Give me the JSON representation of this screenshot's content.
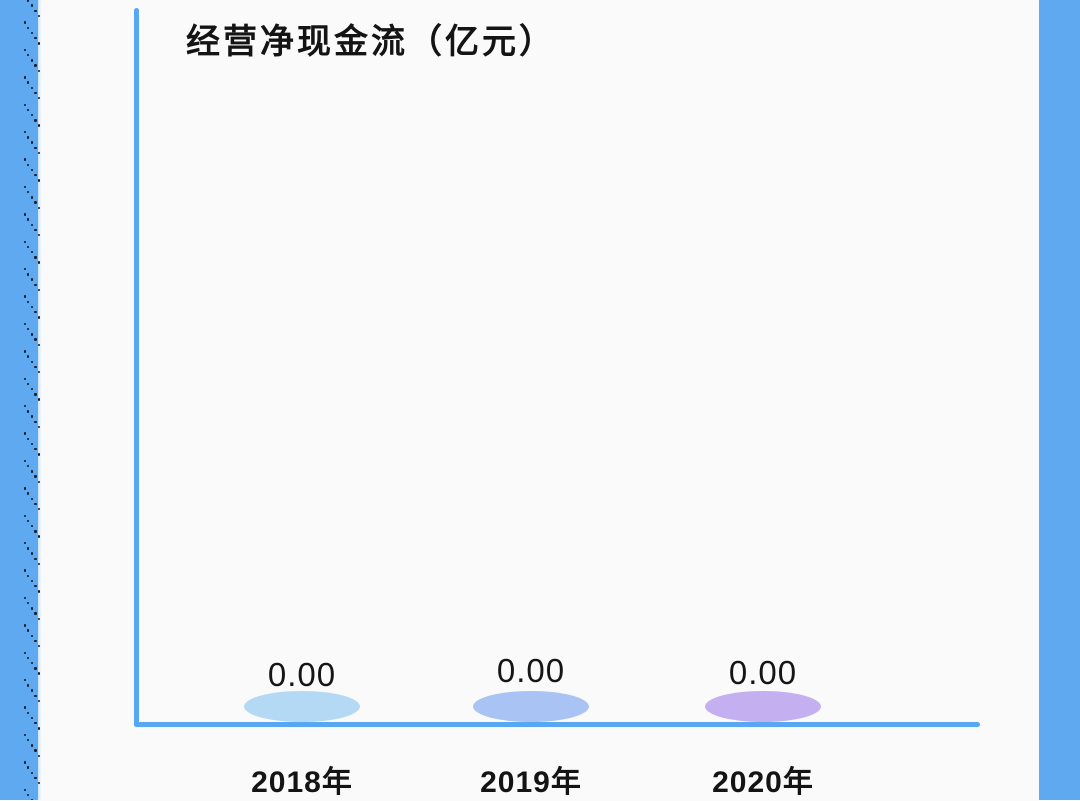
{
  "page": {
    "background_color": "#fafafa",
    "side_band_color": "#5fa9f0",
    "axis_color": "#57a7f3",
    "text_color": "#141414"
  },
  "chart_data": {
    "type": "bar",
    "marker": "ellipse",
    "title": "经营净现金流（亿元）",
    "xlabel": "",
    "ylabel": "",
    "categories": [
      "2018年",
      "2019年",
      "2020年"
    ],
    "values": [
      0.0,
      0.0,
      0.0
    ],
    "value_labels": [
      "0.00",
      "0.00",
      "0.00"
    ],
    "point_colors": [
      "#b4d9f4",
      "#a9c3f4",
      "#c4b0f0"
    ],
    "ylim": [
      0,
      0
    ],
    "y_ticks": [],
    "grid": false,
    "legend": false,
    "legend_position": "none"
  }
}
